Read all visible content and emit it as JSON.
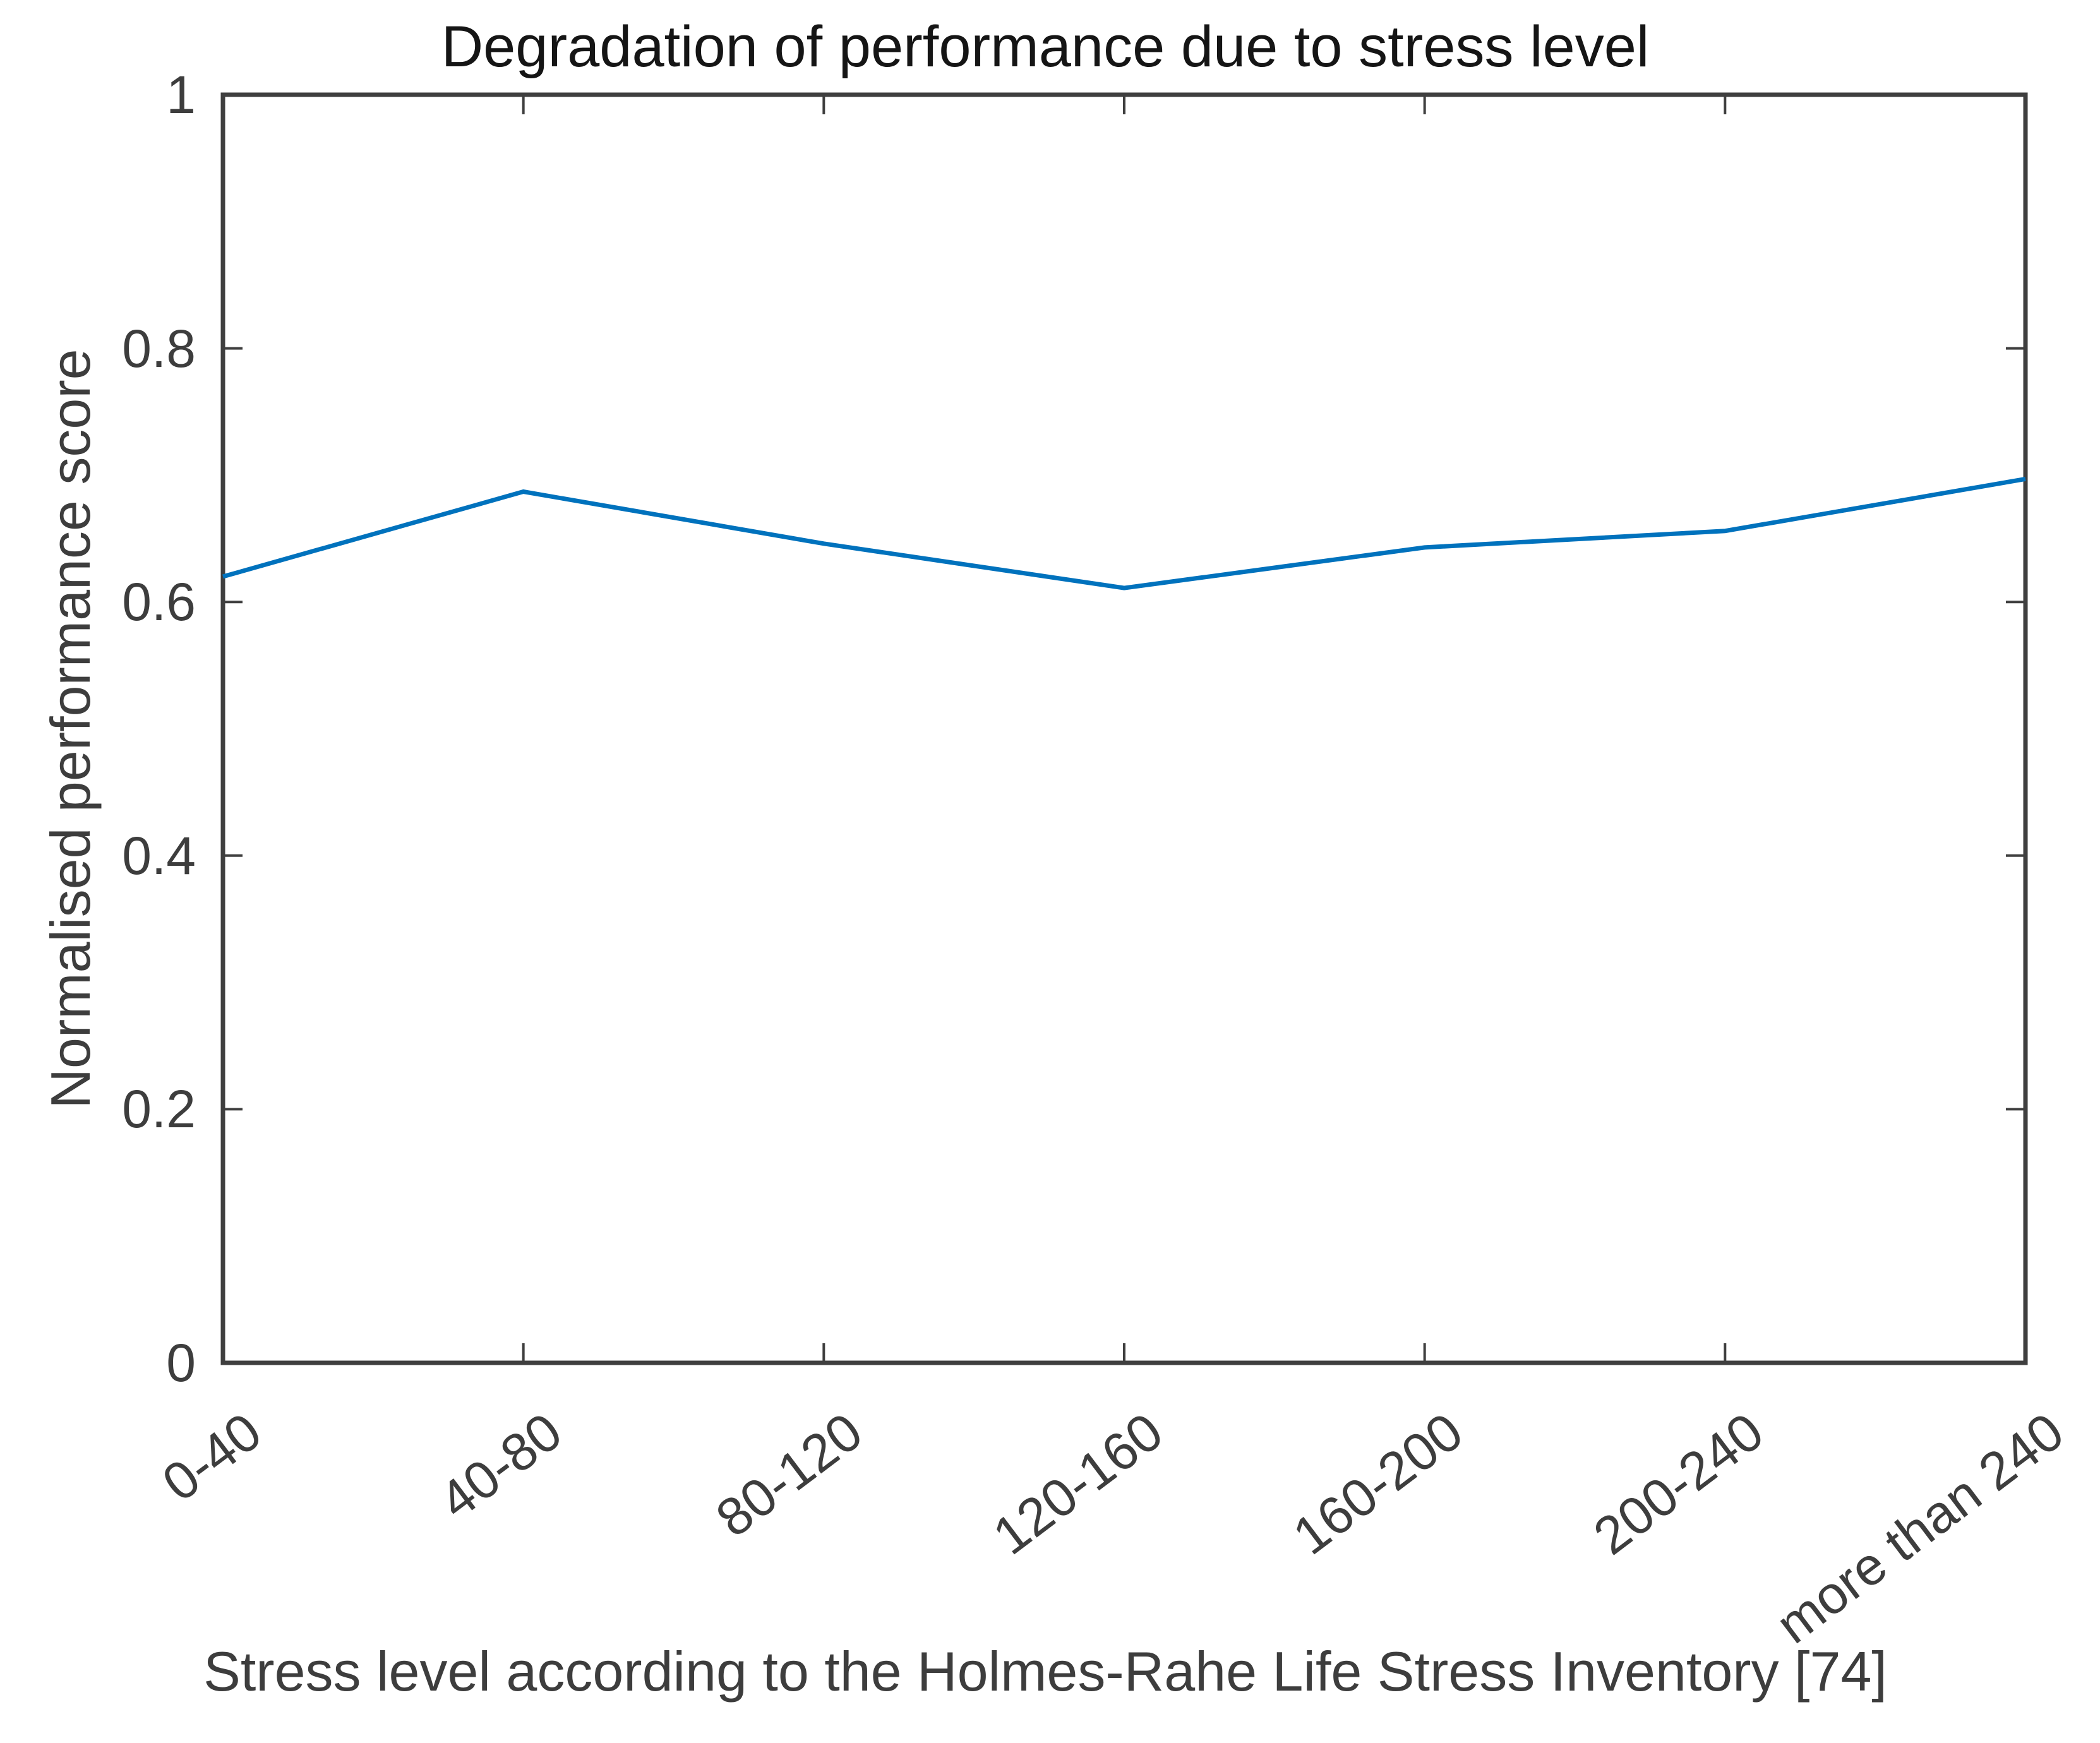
{
  "chart_data": {
    "type": "line",
    "title": "Degradation of performance due to stress level",
    "xlabel": "Stress level according to the Holmes-Rahe Life Stress Inventory [74]",
    "ylabel": "Normalised performance score",
    "categories": [
      "0-40",
      "40-80",
      "80-120",
      "120-160",
      "160-200",
      "200-240",
      "more than 240"
    ],
    "values": [
      0.62,
      0.687,
      0.646,
      0.611,
      0.643,
      0.656,
      0.697
    ],
    "y_ticks": [
      0,
      0.2,
      0.4,
      0.6,
      0.8,
      1
    ],
    "y_tick_labels": [
      "0",
      "0.2",
      "0.4",
      "0.6",
      "0.8",
      "1"
    ],
    "ylim": [
      0,
      1
    ],
    "grid": false,
    "legend": null,
    "x_tick_angle_deg": 37,
    "line_color": "#0072BD",
    "axis_color": "#3f3f3f",
    "text_color": "#3d3d3d",
    "title_color": "#151515",
    "background_color": "#ffffff"
  }
}
